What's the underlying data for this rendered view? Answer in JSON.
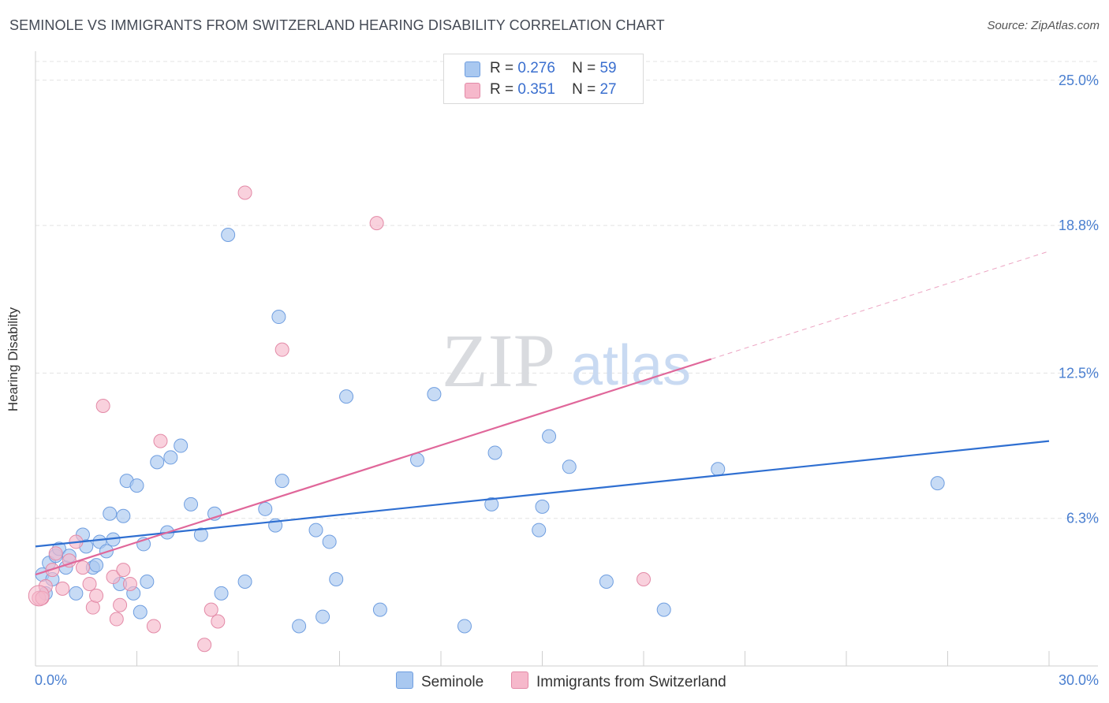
{
  "title": "SEMINOLE VS IMMIGRANTS FROM SWITZERLAND HEARING DISABILITY CORRELATION CHART",
  "source": "Source: ZipAtlas.com",
  "watermark": {
    "zip": "ZIP",
    "atlas": "atlas"
  },
  "legend_top": [
    {
      "r_label": "R =",
      "r_value": "0.276",
      "n_label": "N =",
      "n_value": "59",
      "color": "#a9c8f0"
    },
    {
      "r_label": "R =",
      "r_value": "0.351",
      "n_label": "N =",
      "n_value": "27",
      "color": "#f6b8cb"
    }
  ],
  "legend_bottom": [
    {
      "label": "Seminole",
      "color": "#a9c8f0"
    },
    {
      "label": "Immigrants from Switzerland",
      "color": "#f6b8cb"
    }
  ],
  "chart_data": {
    "type": "scatter",
    "title": "SEMINOLE VS IMMIGRANTS FROM SWITZERLAND HEARING DISABILITY CORRELATION CHART",
    "xlabel": "",
    "ylabel": "Hearing Disability",
    "xlim": [
      0,
      30
    ],
    "ylim": [
      0,
      25.8
    ],
    "x_tick_labels": [
      "0.0%",
      "30.0%"
    ],
    "y_ticks": [
      6.3,
      12.5,
      18.8,
      25.0
    ],
    "y_tick_labels": [
      "6.3%",
      "12.5%",
      "18.8%",
      "25.0%"
    ],
    "grid": true,
    "series": [
      {
        "name": "Seminole",
        "color": "#a9c8f0",
        "stroke": "#6f9ee0",
        "line_color": "#2f6fd1",
        "trend": {
          "x0": 0,
          "y0": 5.1,
          "x1": 30,
          "y1": 9.6
        },
        "points": [
          [
            0.2,
            3.9
          ],
          [
            0.3,
            3.1
          ],
          [
            0.4,
            4.4
          ],
          [
            0.6,
            4.7
          ],
          [
            0.7,
            5.0
          ],
          [
            0.9,
            4.2
          ],
          [
            1.0,
            4.7
          ],
          [
            1.2,
            3.1
          ],
          [
            1.4,
            5.6
          ],
          [
            1.5,
            5.1
          ],
          [
            1.7,
            4.2
          ],
          [
            1.8,
            4.3
          ],
          [
            1.9,
            5.3
          ],
          [
            2.1,
            4.9
          ],
          [
            2.2,
            6.5
          ],
          [
            2.3,
            5.4
          ],
          [
            2.5,
            3.5
          ],
          [
            2.6,
            6.4
          ],
          [
            2.7,
            7.9
          ],
          [
            2.9,
            3.1
          ],
          [
            3.0,
            7.7
          ],
          [
            3.1,
            2.3
          ],
          [
            3.2,
            5.2
          ],
          [
            3.3,
            3.6
          ],
          [
            3.6,
            8.7
          ],
          [
            3.9,
            5.7
          ],
          [
            4.0,
            8.9
          ],
          [
            4.3,
            9.4
          ],
          [
            4.6,
            6.9
          ],
          [
            4.9,
            5.6
          ],
          [
            5.3,
            6.5
          ],
          [
            5.5,
            3.1
          ],
          [
            5.7,
            18.4
          ],
          [
            6.2,
            3.6
          ],
          [
            6.8,
            6.7
          ],
          [
            7.1,
            6.0
          ],
          [
            7.2,
            14.9
          ],
          [
            7.3,
            7.9
          ],
          [
            7.8,
            1.7
          ],
          [
            8.3,
            5.8
          ],
          [
            8.5,
            2.1
          ],
          [
            8.7,
            5.3
          ],
          [
            8.9,
            3.7
          ],
          [
            9.2,
            11.5
          ],
          [
            10.2,
            2.4
          ],
          [
            11.3,
            8.8
          ],
          [
            11.8,
            11.6
          ],
          [
            12.7,
            1.7
          ],
          [
            13.5,
            6.9
          ],
          [
            13.6,
            9.1
          ],
          [
            14.9,
            5.8
          ],
          [
            15.0,
            6.8
          ],
          [
            15.2,
            9.8
          ],
          [
            15.8,
            8.5
          ],
          [
            16.9,
            3.6
          ],
          [
            18.6,
            2.4
          ],
          [
            20.2,
            8.4
          ],
          [
            26.7,
            7.8
          ],
          [
            0.5,
            3.7
          ]
        ]
      },
      {
        "name": "Immigrants from Switzerland",
        "color": "#f6b8cb",
        "stroke": "#e38aa7",
        "line_color": "#e0679a",
        "trend": {
          "x0": 0,
          "y0": 3.9,
          "x1": 20.0,
          "y1": 13.1
        },
        "trend_dashed_to": {
          "x": 30,
          "y": 17.7
        },
        "points": [
          [
            0.1,
            2.9
          ],
          [
            0.3,
            3.4
          ],
          [
            0.5,
            4.1
          ],
          [
            0.8,
            3.3
          ],
          [
            1.2,
            5.3
          ],
          [
            1.4,
            4.2
          ],
          [
            1.6,
            3.5
          ],
          [
            1.7,
            2.5
          ],
          [
            1.8,
            3.0
          ],
          [
            2.0,
            11.1
          ],
          [
            2.3,
            3.8
          ],
          [
            2.4,
            2.0
          ],
          [
            2.5,
            2.6
          ],
          [
            2.6,
            4.1
          ],
          [
            2.8,
            3.5
          ],
          [
            3.5,
            1.7
          ],
          [
            3.7,
            9.6
          ],
          [
            5.0,
            0.9
          ],
          [
            5.2,
            2.4
          ],
          [
            5.4,
            1.9
          ],
          [
            6.2,
            20.2
          ],
          [
            7.3,
            13.5
          ],
          [
            10.1,
            18.9
          ],
          [
            18.0,
            3.7
          ],
          [
            0.2,
            2.9
          ],
          [
            0.6,
            4.8
          ],
          [
            1.0,
            4.5
          ]
        ]
      }
    ]
  }
}
